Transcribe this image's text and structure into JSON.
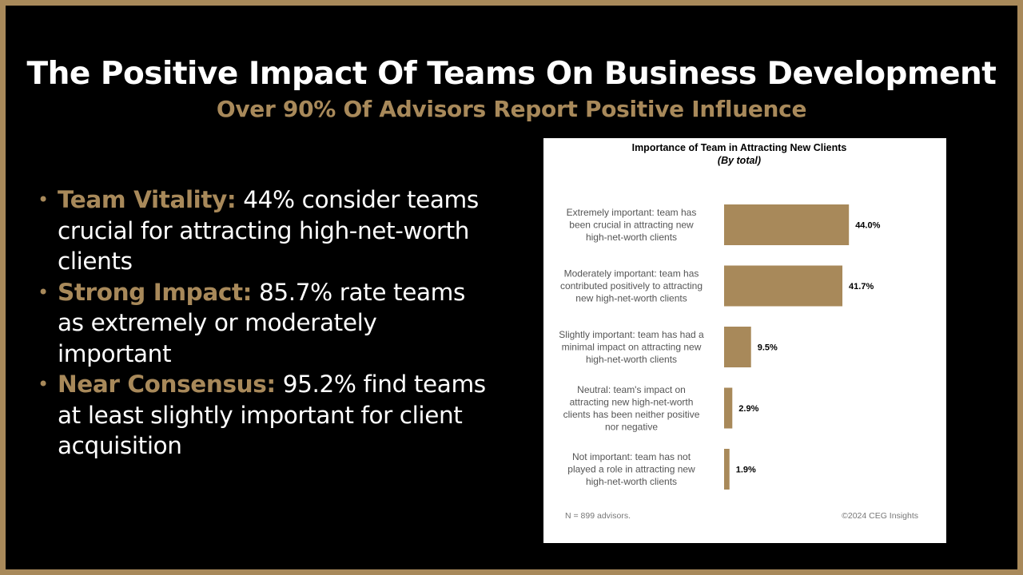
{
  "slide": {
    "title": "The Positive Impact Of Teams On Business Development",
    "subtitle": "Over 90% Of Advisors Report Positive Influence",
    "colors": {
      "accent": "#a8895a",
      "background": "#000000",
      "text": "#ffffff"
    },
    "bullets": [
      {
        "lead": "Team Vitality:",
        "text": " 44% consider teams crucial for attracting high-net-worth clients"
      },
      {
        "lead": "Strong Impact:",
        "text": " 85.7% rate teams as extremely or moderately important"
      },
      {
        "lead": "Near Consensus:",
        "text": " 95.2% find teams at least slightly important for client acquisition"
      }
    ]
  },
  "chart_data": {
    "type": "bar",
    "orientation": "horizontal",
    "title": "Importance of Team in Attracting New Clients",
    "subtitle": "(By total)",
    "categories": [
      [
        "Extremely important: team has",
        "been crucial in attracting new",
        "high-net-worth clients"
      ],
      [
        "Moderately important: team has",
        "contributed positively to attracting",
        "new high-net-worth clients"
      ],
      [
        "Slightly important: team has had a",
        "minimal impact on attracting new",
        "high-net-worth clients"
      ],
      [
        "Neutral: team's impact on",
        "attracting new high-net-worth",
        "clients has been neither positive",
        "nor negative"
      ],
      [
        "Not important: team has not",
        "played a role in attracting new",
        "high-net-worth clients"
      ]
    ],
    "values": [
      44.0,
      41.7,
      9.5,
      2.9,
      1.9
    ],
    "value_labels": [
      "44.0%",
      "41.7%",
      "9.5%",
      "2.9%",
      "1.9%"
    ],
    "bar_color": "#a8895a",
    "xlim": [
      0,
      100
    ],
    "grid": false,
    "note": "N = 899 advisors.",
    "credit": "©2024 CEG Insights"
  }
}
